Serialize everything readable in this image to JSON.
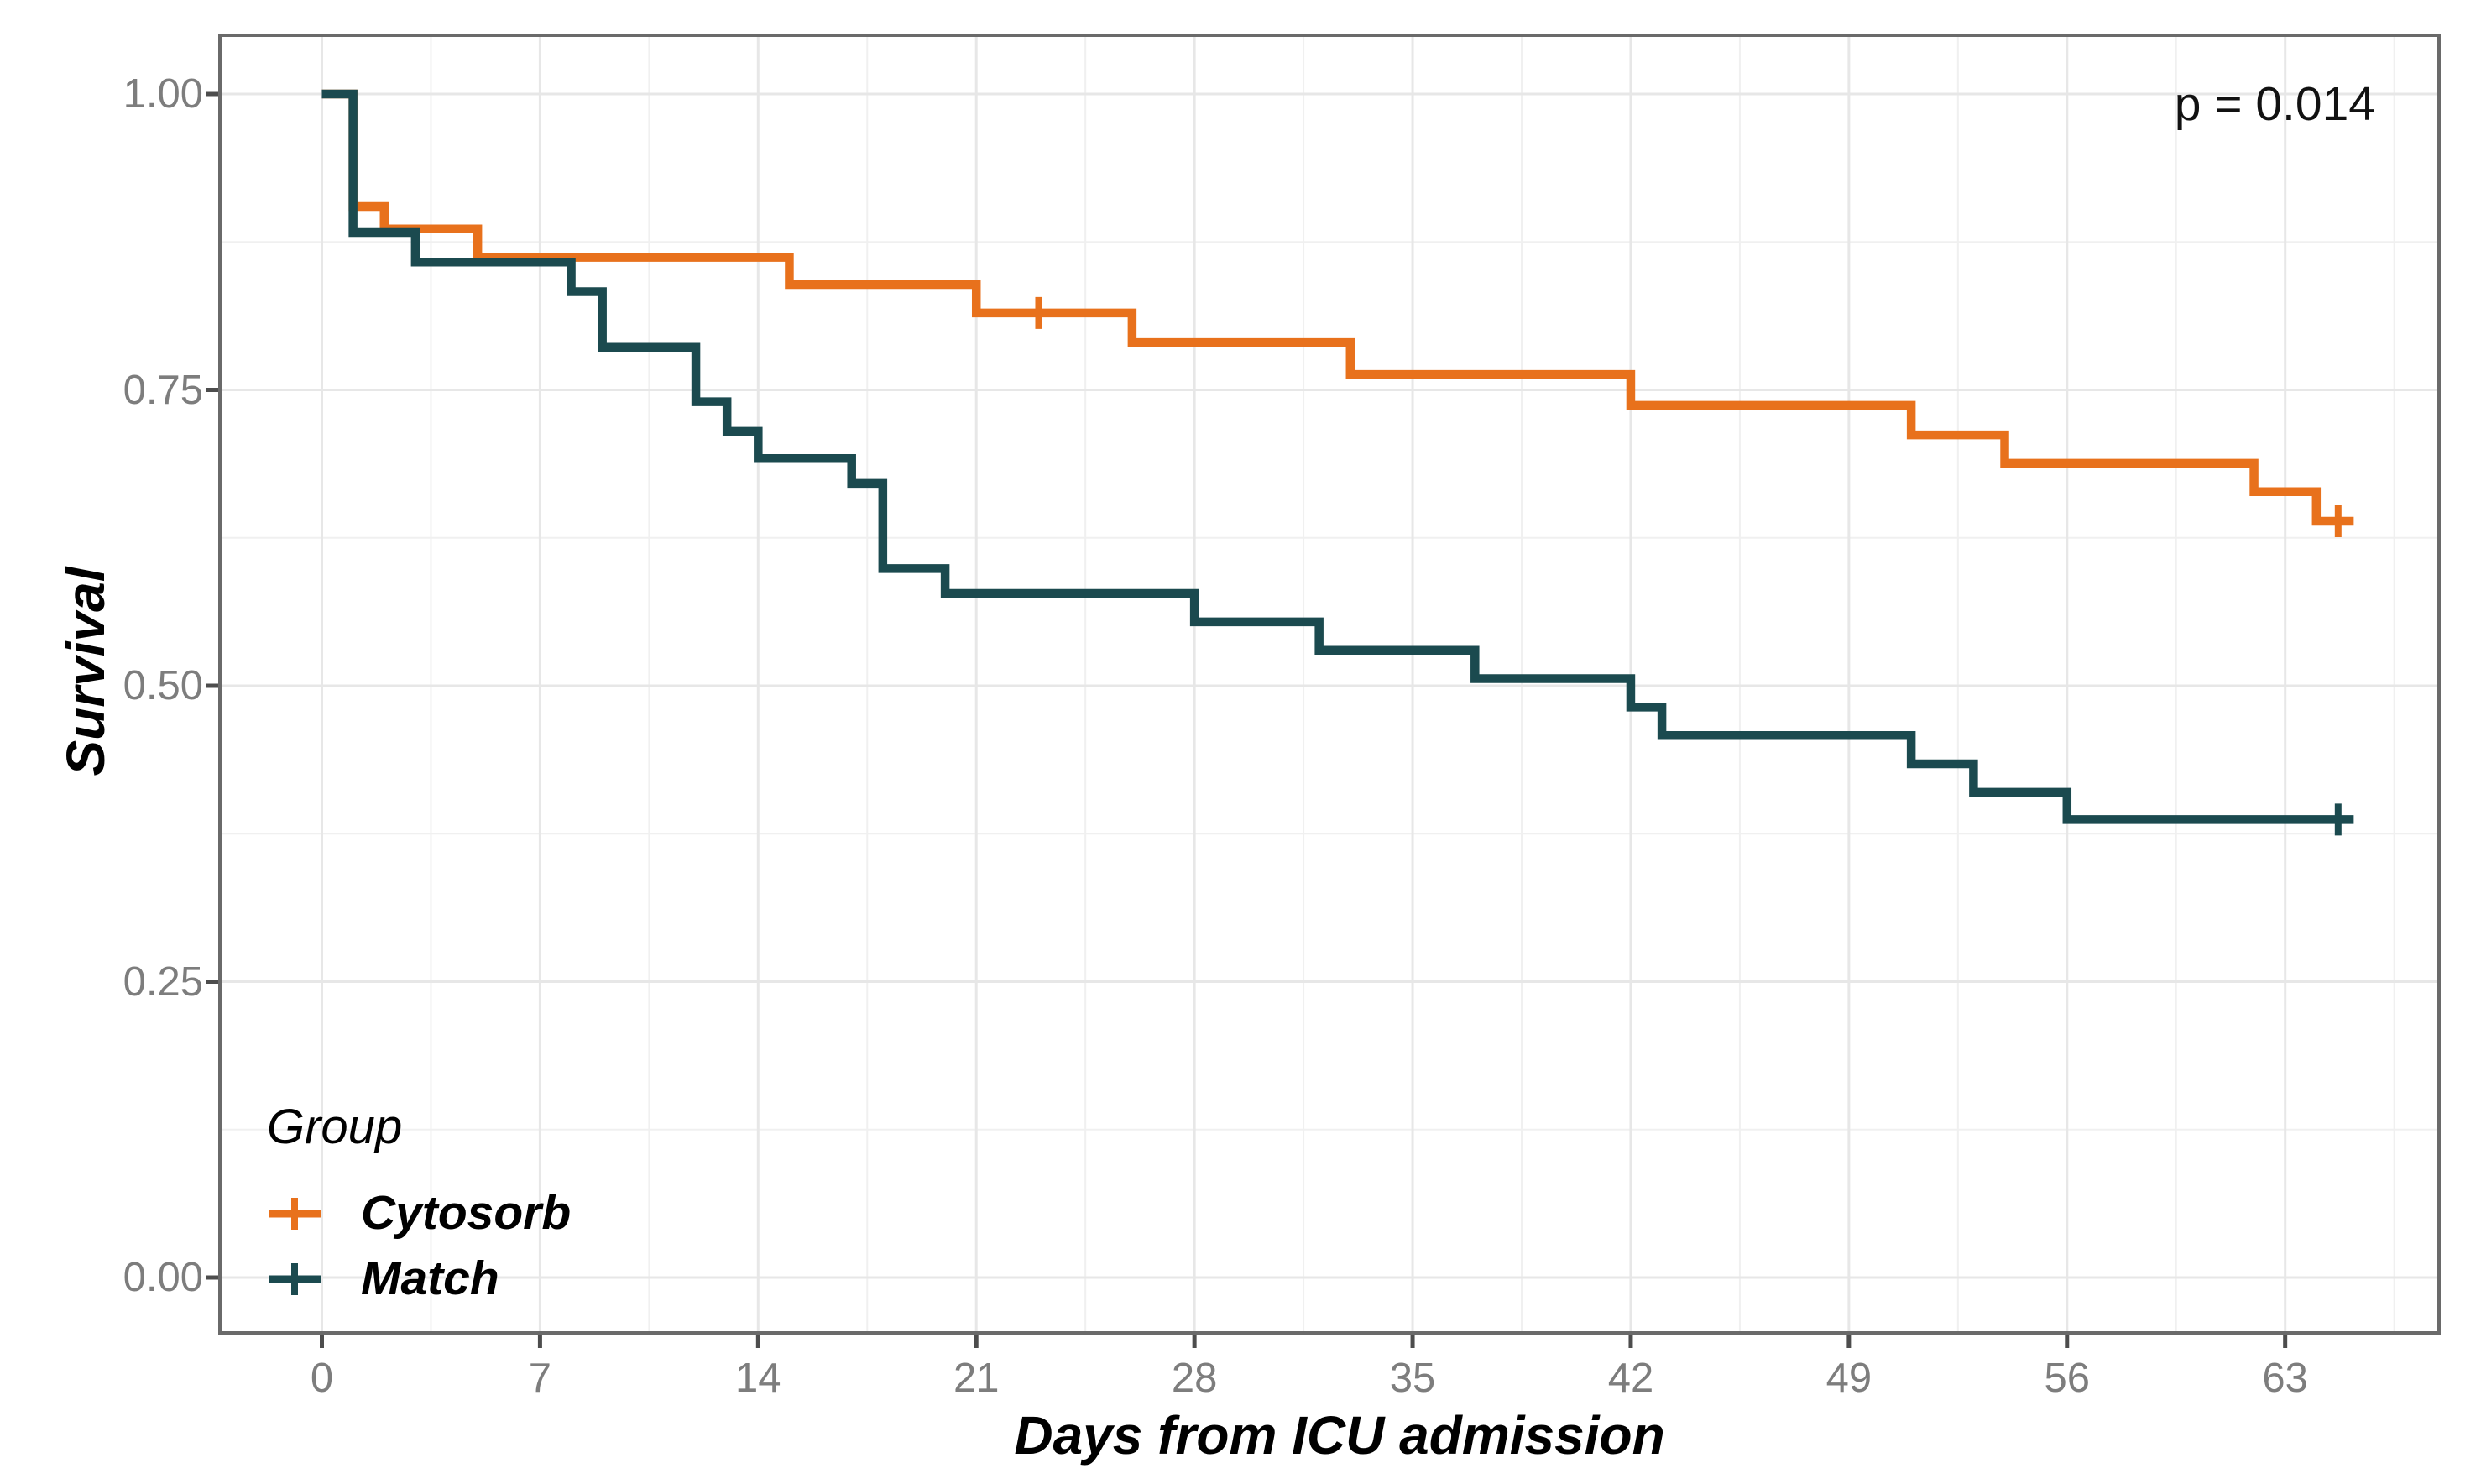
{
  "chart_data": {
    "type": "line",
    "subtype": "kaplan-meier-step-curves",
    "title": "",
    "xlabel": "Days from ICU admission",
    "ylabel": "Survival",
    "xlim": [
      -3.3,
      68.3
    ],
    "ylim": [
      -0.05,
      1.05
    ],
    "x_ticks": [
      0,
      7,
      14,
      21,
      28,
      35,
      42,
      49,
      56,
      63
    ],
    "x_tick_labels": [
      "0",
      "7",
      "14",
      "21",
      "28",
      "35",
      "42",
      "49",
      "56",
      "63"
    ],
    "y_ticks": [
      1.0,
      0.75,
      0.5,
      0.25,
      0.0
    ],
    "y_tick_labels": [
      "1.00",
      "0.75",
      "0.50",
      "0.25",
      "0.00"
    ],
    "y_minor_gridlines": [
      0.875,
      0.625,
      0.375,
      0.125
    ],
    "x_minor_offset_days": 3.5,
    "grid": "major and minor, light gray on white panel",
    "annotation": {
      "text": "p = 0.014",
      "x": 62,
      "y": 0.985
    },
    "legend": {
      "title": "Group",
      "position": "inside bottom-left"
    },
    "colors": {
      "cytosorb": "#E8711C",
      "match": "#1B4A4F",
      "tick_text": "#7d7d7d",
      "panel_border": "#6a6a6a"
    },
    "series": [
      {
        "name": "Cytosorb",
        "color": "#E8711C",
        "points": [
          [
            0,
            1.0
          ],
          [
            1,
            0.905
          ],
          [
            2,
            0.886
          ],
          [
            5,
            0.862
          ],
          [
            15,
            0.839
          ],
          [
            21,
            0.815
          ],
          [
            26,
            0.79
          ],
          [
            33,
            0.763
          ],
          [
            42,
            0.737
          ],
          [
            51,
            0.712
          ],
          [
            54,
            0.688
          ],
          [
            62,
            0.664
          ],
          [
            64,
            0.639
          ]
        ],
        "end_x": 65.2,
        "censor_marks": [
          [
            23,
            0.815
          ],
          [
            64.7,
            0.639
          ]
        ]
      },
      {
        "name": "Match",
        "color": "#1B4A4F",
        "points": [
          [
            0,
            1.0
          ],
          [
            1,
            0.883
          ],
          [
            3,
            0.858
          ],
          [
            8,
            0.833
          ],
          [
            9,
            0.786
          ],
          [
            12,
            0.74
          ],
          [
            13,
            0.715
          ],
          [
            14,
            0.692
          ],
          [
            17,
            0.671
          ],
          [
            18,
            0.599
          ],
          [
            20,
            0.578
          ],
          [
            28,
            0.554
          ],
          [
            32,
            0.53
          ],
          [
            37,
            0.506
          ],
          [
            42,
            0.482
          ],
          [
            43,
            0.458
          ],
          [
            51,
            0.434
          ],
          [
            53,
            0.41
          ],
          [
            56,
            0.387
          ]
        ],
        "end_x": 65.2,
        "censor_marks": [
          [
            64.7,
            0.387
          ]
        ]
      }
    ]
  }
}
